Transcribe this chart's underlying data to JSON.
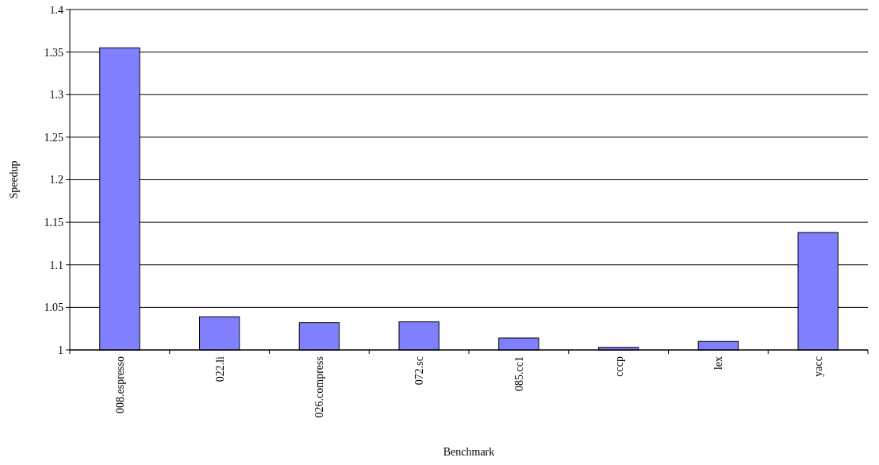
{
  "chart_data": {
    "type": "bar",
    "xlabel": "Benchmark",
    "ylabel": "Speedup",
    "categories": [
      "008.espresso",
      "022.li",
      "026.compress",
      "072.sc",
      "085.cc1",
      "cccp",
      "lex",
      "yacc"
    ],
    "values": [
      1.355,
      1.039,
      1.032,
      1.033,
      1.014,
      1.003,
      1.01,
      1.138
    ],
    "color": "#8080ff",
    "ylim": [
      1,
      1.4
    ],
    "yticks": [
      1,
      1.05,
      1.1,
      1.15,
      1.2,
      1.25,
      1.3,
      1.35,
      1.4
    ],
    "grid": "y"
  }
}
